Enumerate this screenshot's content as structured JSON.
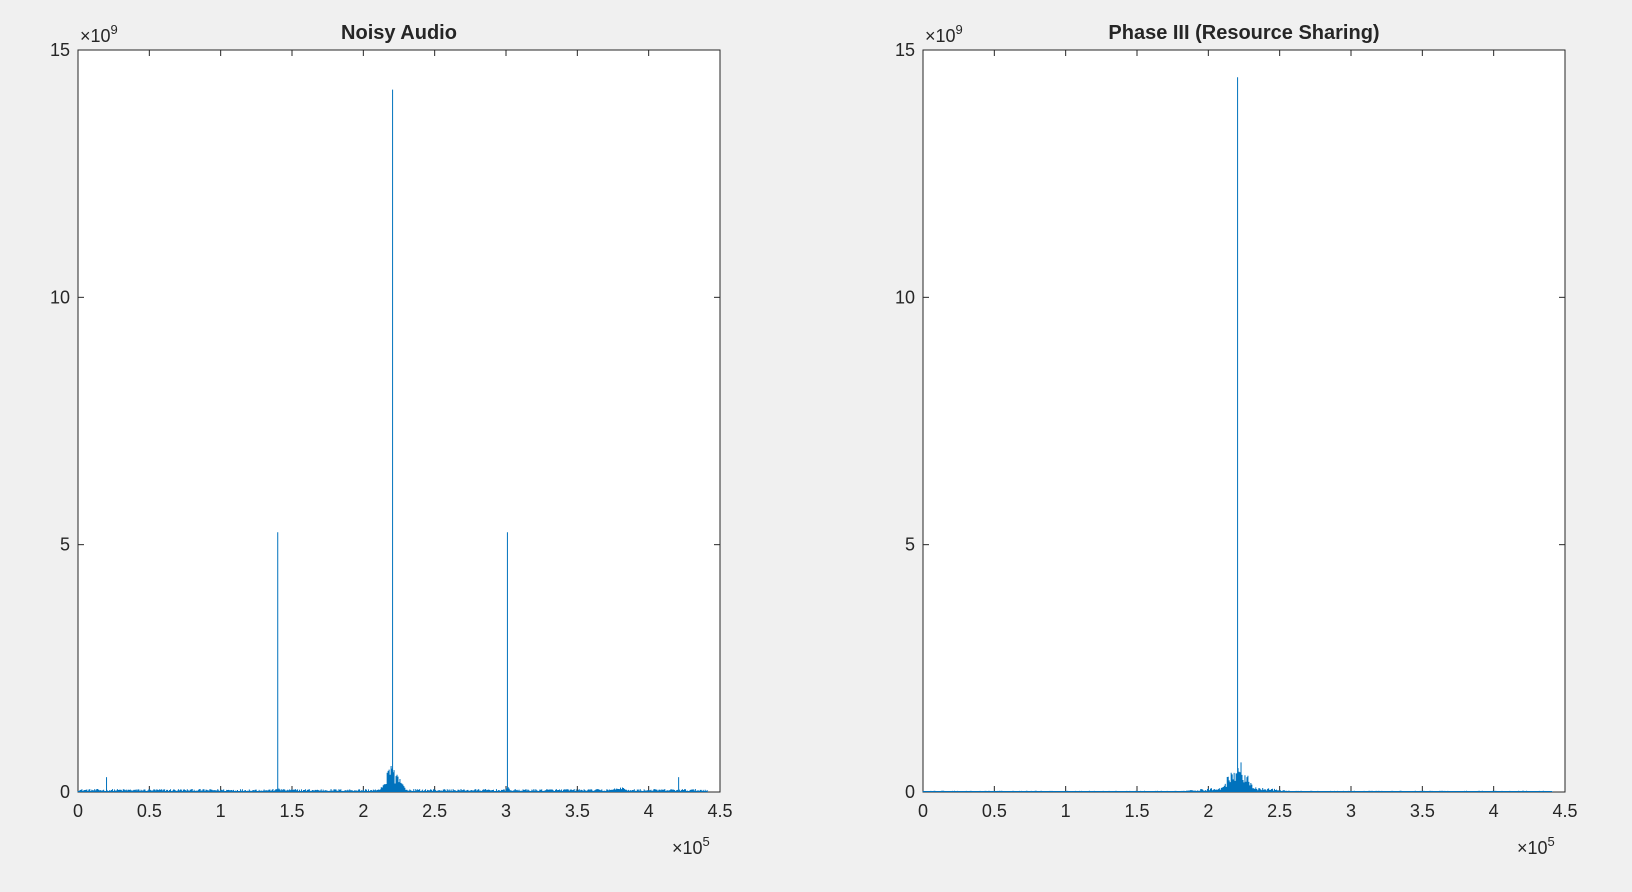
{
  "figure": {
    "background": "#f0f0f0",
    "axes_color": "#262626",
    "line_color": "#0072bd"
  },
  "chart_data": [
    {
      "type": "line",
      "title": "Noisy Audio",
      "xlabel": "",
      "ylabel": "",
      "xlim": [
        0,
        450000
      ],
      "ylim": [
        0,
        15000000000
      ],
      "x_exponent": {
        "base": "×10",
        "power": "5"
      },
      "y_exponent": {
        "base": "×10",
        "power": "9"
      },
      "xticks": [
        0,
        50000,
        100000,
        150000,
        200000,
        250000,
        300000,
        350000,
        400000,
        450000
      ],
      "xtick_labels": [
        "0",
        "0.5",
        "1",
        "1.5",
        "2",
        "2.5",
        "3",
        "3.5",
        "4",
        "4.5"
      ],
      "yticks": [
        0,
        5000000000,
        10000000000,
        15000000000
      ],
      "ytick_labels": [
        "0",
        "5",
        "10",
        "15"
      ],
      "grid": false,
      "legend": "none",
      "data_extent": [
        0,
        441000
      ],
      "noise_floor": 60000000,
      "clusters": [
        {
          "center": 220500,
          "halfwidth": 10000,
          "max": 650000000
        },
        {
          "center": 140000,
          "halfwidth": 3000,
          "max": 120000000
        },
        {
          "center": 301000,
          "halfwidth": 3000,
          "max": 120000000
        },
        {
          "center": 380000,
          "halfwidth": 12000,
          "max": 110000000
        }
      ],
      "peaks": [
        {
          "x": 20000,
          "y": 300000000
        },
        {
          "x": 140000,
          "y": 5250000000
        },
        {
          "x": 220500,
          "y": 14200000000
        },
        {
          "x": 301000,
          "y": 5250000000
        },
        {
          "x": 421000,
          "y": 300000000
        }
      ]
    },
    {
      "type": "line",
      "title": "Phase III (Resource Sharing)",
      "xlabel": "",
      "ylabel": "",
      "xlim": [
        0,
        450000
      ],
      "ylim": [
        0,
        15000000000
      ],
      "x_exponent": {
        "base": "×10",
        "power": "5"
      },
      "y_exponent": {
        "base": "×10",
        "power": "9"
      },
      "xticks": [
        0,
        50000,
        100000,
        150000,
        200000,
        250000,
        300000,
        350000,
        400000,
        450000
      ],
      "xtick_labels": [
        "0",
        "0.5",
        "1",
        "1.5",
        "2",
        "2.5",
        "3",
        "3.5",
        "4",
        "4.5"
      ],
      "yticks": [
        0,
        5000000000,
        10000000000,
        15000000000
      ],
      "ytick_labels": [
        "0",
        "5",
        "10",
        "15"
      ],
      "grid": false,
      "legend": "none",
      "data_extent": [
        0,
        441000
      ],
      "noise_floor": 25000000,
      "clusters": [
        {
          "center": 220500,
          "halfwidth": 13000,
          "max": 800000000
        },
        {
          "center": 220500,
          "halfwidth": 45000,
          "max": 150000000
        }
      ],
      "peaks": [
        {
          "x": 220500,
          "y": 14450000000
        }
      ]
    }
  ]
}
